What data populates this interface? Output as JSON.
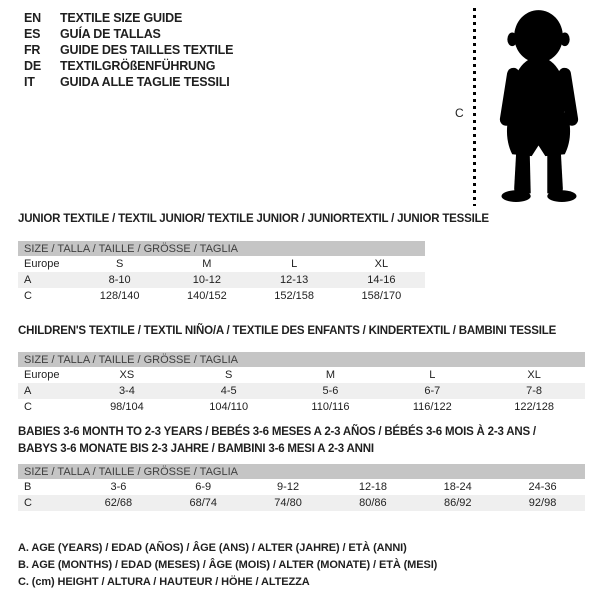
{
  "colors": {
    "header-bar": "#c5c5c5",
    "row-shaded": "#efefef",
    "text": "#1f1f1f",
    "bar-text": "#3f3f3f",
    "ink": "#000000"
  },
  "languages": [
    {
      "code": "EN",
      "label": "TEXTILE SIZE GUIDE"
    },
    {
      "code": "ES",
      "label": "GUÍA DE TALLAS"
    },
    {
      "code": "FR",
      "label": "GUIDE DES TAILLES TEXTILE"
    },
    {
      "code": "DE",
      "label": "TEXTILGRÖßENFÜHRUNG"
    },
    {
      "code": "IT",
      "label": "GUIDA ALLE TAGLIE TESSILI"
    }
  ],
  "figure": {
    "measure_label": "C"
  },
  "sections": [
    {
      "heading": "JUNIOR TEXTILE / TEXTIL JUNIOR/ TEXTILE JUNIOR / JUNIORTEXTIL / JUNIOR TESSILE",
      "table": {
        "size_header": "SIZE / TALLA / TAILLE / GRÖSSE / TAGLIA",
        "rows": [
          {
            "cells": [
              "Europe",
              "S",
              "M",
              "L",
              "XL"
            ],
            "shaded": false
          },
          {
            "cells": [
              "A",
              "8-10",
              "10-12",
              "12-13",
              "14-16"
            ],
            "shaded": true
          },
          {
            "cells": [
              "C",
              "128/140",
              "140/152",
              "152/158",
              "158/170"
            ],
            "shaded": false
          }
        ]
      }
    },
    {
      "heading": "CHILDREN'S TEXTILE / TEXTIL NIÑO/A / TEXTILE DES ENFANTS / KINDERTEXTIL / BAMBINI TESSILE",
      "table": {
        "size_header": "SIZE / TALLA / TAILLE / GRÖSSE / TAGLIA",
        "rows": [
          {
            "cells": [
              "Europe",
              "XS",
              "S",
              "M",
              "L",
              "XL"
            ],
            "shaded": false
          },
          {
            "cells": [
              "A",
              "3-4",
              "4-5",
              "5-6",
              "6-7",
              "7-8"
            ],
            "shaded": true
          },
          {
            "cells": [
              "C",
              "98/104",
              "104/110",
              "110/116",
              "116/122",
              "122/128"
            ],
            "shaded": false
          }
        ]
      }
    },
    {
      "heading": "BABIES 3-6 MONTH TO 2-3 YEARS / BEBÉS 3-6 MESES A 2-3 AÑOS / BÉBÉS 3-6 MOIS À 2-3 ANS /",
      "heading_line2": "BABYS 3-6 MONATE BIS 2-3 JAHRE / BAMBINI 3-6 MESI A 2-3 ANNI",
      "table": {
        "size_header": "SIZE / TALLA / TAILLE / GRÖSSE / TAGLIA",
        "rows": [
          {
            "cells": [
              "B",
              "3-6",
              "6-9",
              "9-12",
              "12-18",
              "18-24",
              "24-36"
            ],
            "shaded": false
          },
          {
            "cells": [
              "C",
              "62/68",
              "68/74",
              "74/80",
              "80/86",
              "86/92",
              "92/98"
            ],
            "shaded": true
          }
        ]
      }
    }
  ],
  "footnotes": [
    "A. AGE (YEARS) / EDAD (AÑOS) / ÂGE (ANS) / ALTER (JAHRE) / ETÀ (ANNI)",
    "B. AGE (MONTHS) / EDAD (MESES) / ÂGE (MOIS) / ALTER (MONATE) / ETÀ (MESI)",
    "C. (cm) HEIGHT / ALTURA / HAUTEUR / HÖHE / ALTEZZA"
  ]
}
